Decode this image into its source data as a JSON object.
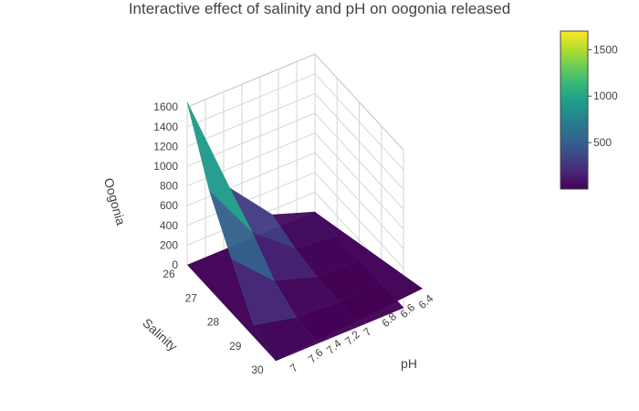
{
  "chart_data": {
    "type": "surface3d",
    "title": "Interactive effect of salinity and pH on oogonia released",
    "axes": {
      "z": {
        "label": "Oogonia",
        "range": [
          0,
          1700
        ],
        "ticks": [
          "0",
          "200",
          "400",
          "600",
          "800",
          "1000",
          "1200",
          "1400",
          "1600"
        ]
      },
      "salinity": {
        "label": "Salinity",
        "range": [
          26,
          30
        ],
        "ticks": [
          "26",
          "27",
          "28",
          "29",
          "30"
        ]
      },
      "ph": {
        "label": "pH",
        "range": [
          6.4,
          7.6
        ],
        "ticks": [
          "7",
          "7.6",
          "7.4",
          "7.2",
          "7",
          "6.8",
          "6.6",
          "6.4"
        ]
      }
    },
    "colorbar": {
      "ticks": [
        "500",
        "1000",
        "1500"
      ],
      "min": 0,
      "max": 1700,
      "colorscale": "viridis"
    },
    "grid": true,
    "surface": {
      "salinity": [
        26,
        27,
        28,
        29,
        30
      ],
      "ph": [
        6.4,
        6.8,
        7.2,
        7.6
      ],
      "z": [
        [
          0,
          150,
          600,
          1650
        ],
        [
          0,
          60,
          400,
          1000
        ],
        [
          0,
          10,
          150,
          550
        ],
        [
          0,
          0,
          20,
          120
        ],
        [
          0,
          0,
          0,
          0
        ]
      ]
    }
  }
}
